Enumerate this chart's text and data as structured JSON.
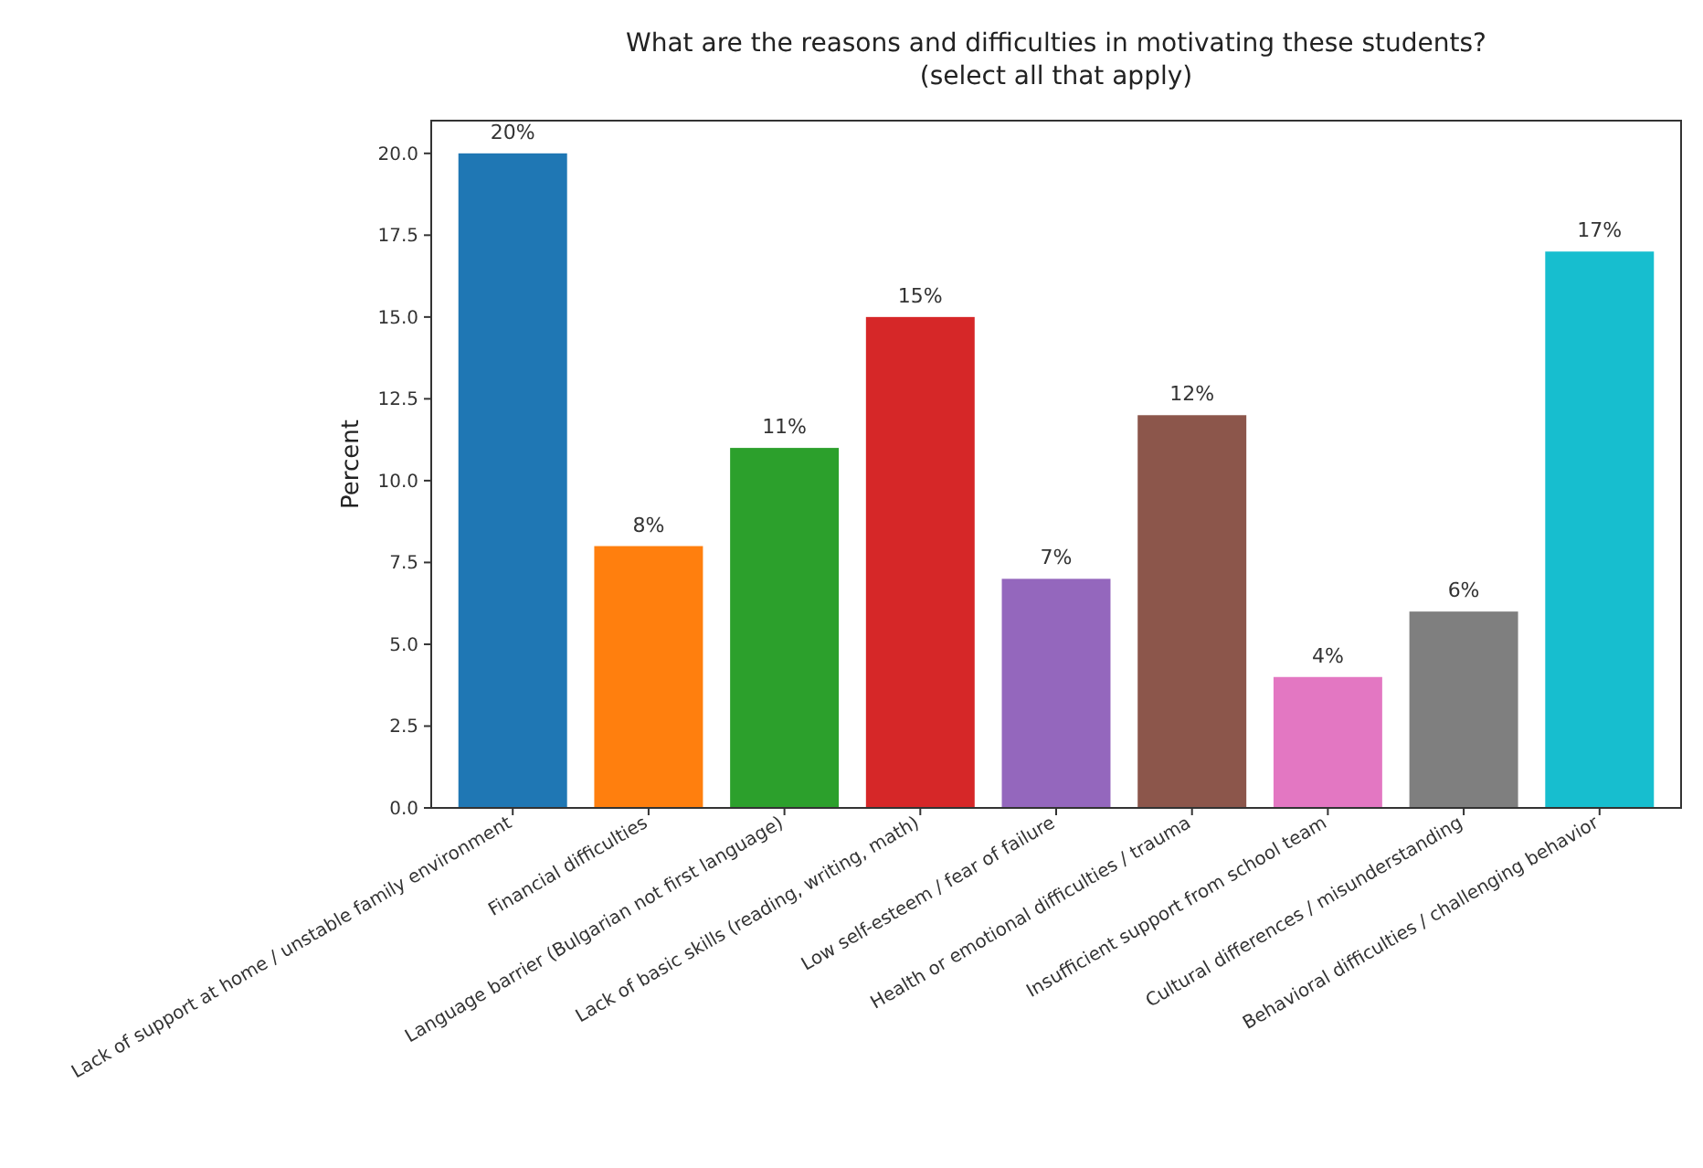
{
  "chart_data": {
    "type": "bar",
    "title": "What are the reasons and difficulties in motivating these students?\n(select all that apply)",
    "ylabel": "Percent",
    "categories": [
      "Lack of support at home / unstable family environment",
      "Financial difficulties",
      "Language barrier (Bulgarian not first language)",
      "Lack of basic skills (reading, writing, math)",
      "Low self-esteem / fear of failure",
      "Health or emotional difficulties / trauma",
      "Insufficient support from school team",
      "Cultural differences / misunderstanding",
      "Behavioral difficulties / challenging behavior"
    ],
    "values": [
      20,
      8,
      11,
      15,
      7,
      12,
      4,
      6,
      17
    ],
    "colors": [
      "#1f77b4",
      "#ff7f0e",
      "#2ca02c",
      "#d62728",
      "#9467bd",
      "#8c564b",
      "#e377c2",
      "#7f7f7f",
      "#17becf"
    ],
    "value_labels": [
      "20%",
      "8%",
      "11%",
      "15%",
      "7%",
      "12%",
      "4%",
      "6%",
      "17%"
    ],
    "ylim": [
      0,
      21
    ],
    "yticks": [
      {
        "value": 0,
        "label": "0.0"
      },
      {
        "value": 2.5,
        "label": "2.5"
      },
      {
        "value": 5,
        "label": "5.0"
      },
      {
        "value": 7.5,
        "label": "7.5"
      },
      {
        "value": 10,
        "label": "10.0"
      },
      {
        "value": 12.5,
        "label": "12.5"
      },
      {
        "value": 15,
        "label": "15.0"
      },
      {
        "value": 17.5,
        "label": "17.5"
      },
      {
        "value": 20,
        "label": "20.0"
      }
    ],
    "data_labels": false
  }
}
